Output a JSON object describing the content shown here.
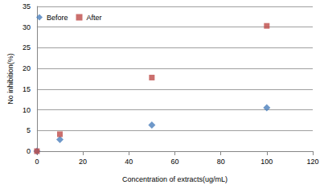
{
  "chart_data": {
    "type": "scatter",
    "x_label": "Concentration of extracts(ug/mL)",
    "y_label": "No inhibition(%)",
    "xlim": [
      0,
      120
    ],
    "xticks": [
      0,
      20,
      40,
      60,
      80,
      100,
      120
    ],
    "ylim": [
      0,
      35
    ],
    "yticks": [
      0,
      5,
      10,
      15,
      20,
      25,
      30,
      35
    ],
    "grid": true,
    "legend": "upper left",
    "series": [
      {
        "name": "Before",
        "color": "#4a7ebb",
        "marker": "diamond",
        "x": [
          0,
          10,
          50,
          100
        ],
        "values": [
          0,
          2.8,
          6.3,
          10.5
        ]
      },
      {
        "name": "After",
        "color": "#be4b48",
        "marker": "square",
        "x": [
          0,
          10,
          50,
          100
        ],
        "values": [
          0,
          4.1,
          17.8,
          30.3
        ]
      }
    ]
  }
}
